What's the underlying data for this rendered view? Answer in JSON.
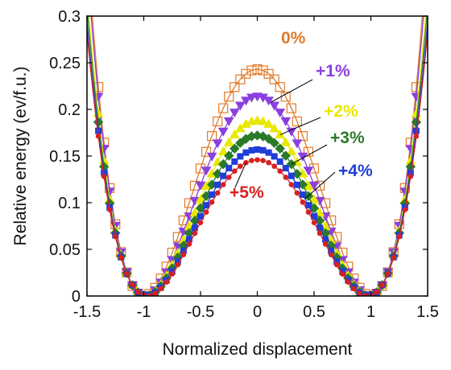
{
  "chart_data": {
    "type": "line",
    "title": "",
    "xlabel": "Normalized displacement",
    "ylabel": "Relative energy (ev/f.u.)",
    "xlim": [
      -1.5,
      1.5
    ],
    "ylim": [
      0,
      0.3
    ],
    "xticks": [
      -1.5,
      -1,
      -0.5,
      0,
      0.5,
      1,
      1.5
    ],
    "xtick_labels": [
      "-1.5",
      "-1",
      "-0.5",
      "0",
      "0.5",
      "1",
      "1.5"
    ],
    "yticks": [
      0,
      0.05,
      0.1,
      0.15,
      0.2,
      0.25,
      0.3
    ],
    "ytick_labels": [
      "0",
      "0.05",
      "0.1",
      "0.15",
      "0.2",
      "0.25",
      "0.3"
    ],
    "grid": false,
    "legend": "none",
    "series": [
      {
        "name": "0%",
        "color": "#e07a2a",
        "marker": "open-square",
        "barrier": 0.243,
        "min_x": 1.0
      },
      {
        "name": "+1%",
        "color": "#8a3fe0",
        "marker": "triangle-down",
        "barrier": 0.214,
        "min_x": 0.99
      },
      {
        "name": "+2%",
        "color": "#e8e800",
        "marker": "triangle-up",
        "barrier": 0.188,
        "min_x": 0.985
      },
      {
        "name": "+3%",
        "color": "#2a7a2a",
        "marker": "diamond",
        "barrier": 0.172,
        "min_x": 0.98
      },
      {
        "name": "+4%",
        "color": "#1f3fd8",
        "marker": "square",
        "barrier": 0.157,
        "min_x": 0.975
      },
      {
        "name": "+5%",
        "color": "#d82020",
        "marker": "circle",
        "barrier": 0.146,
        "min_x": 0.97
      }
    ],
    "annotations": [
      {
        "text": "0%",
        "series": "0%",
        "color": "#e07a2a"
      },
      {
        "text": "+1%",
        "series": "+1%",
        "color": "#8a3fe0"
      },
      {
        "text": "+2%",
        "series": "+2%",
        "color": "#e8e800"
      },
      {
        "text": "+3%",
        "series": "+3%",
        "color": "#2a7a2a"
      },
      {
        "text": "+4%",
        "series": "+4%",
        "color": "#1f3fd8"
      },
      {
        "text": "+5%",
        "series": "+5%",
        "color": "#d82020"
      }
    ]
  }
}
